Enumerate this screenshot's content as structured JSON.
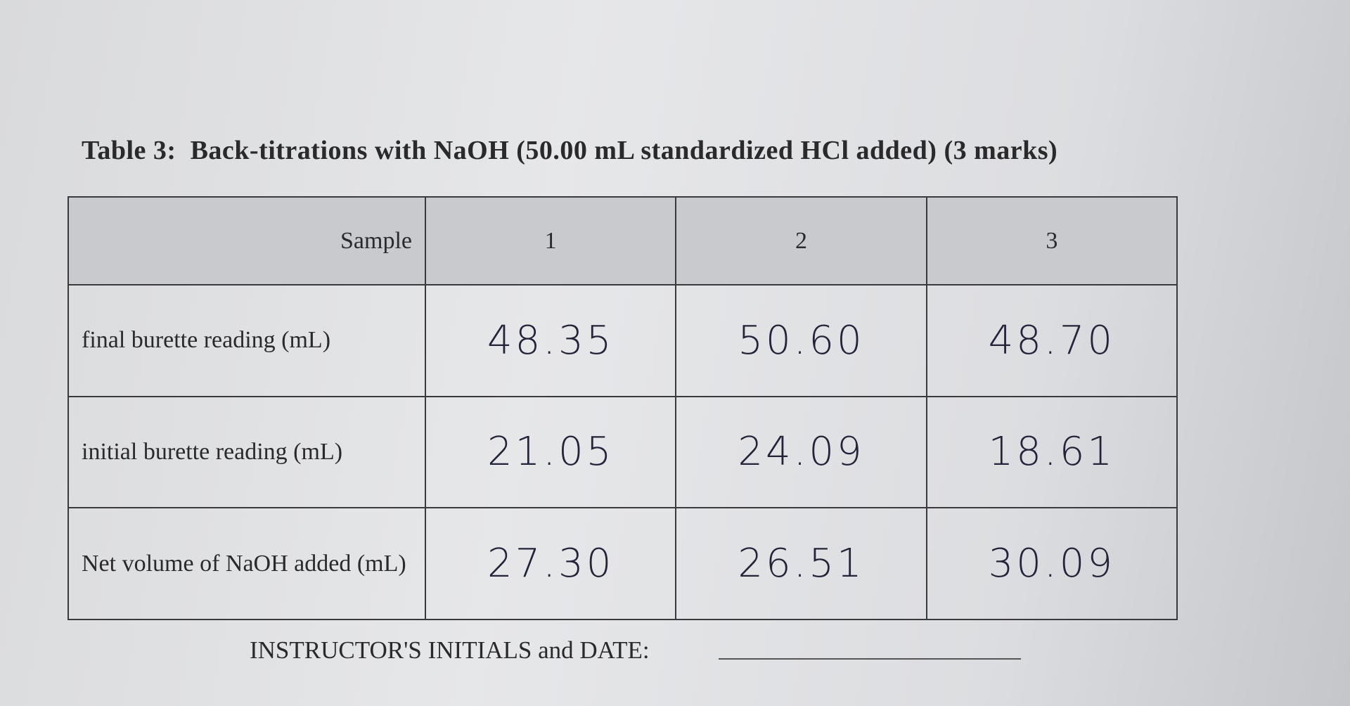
{
  "title": "Table 3:  Back-titrations with NaOH (50.00 mL standardized HCl added) (3 marks)",
  "table": {
    "header": [
      "Sample",
      "1",
      "2",
      "3"
    ],
    "rows": [
      [
        "final burette reading (mL)",
        "48.35",
        "50.60",
        "48.70"
      ],
      [
        "initial burette reading (mL)",
        "21.05",
        "24.09",
        "18.61"
      ],
      [
        "Net volume of NaOH added (mL)",
        "27.30",
        "26.51",
        "30.09"
      ]
    ]
  },
  "footer": "INSTRUCTOR'S INITIALS and DATE:"
}
